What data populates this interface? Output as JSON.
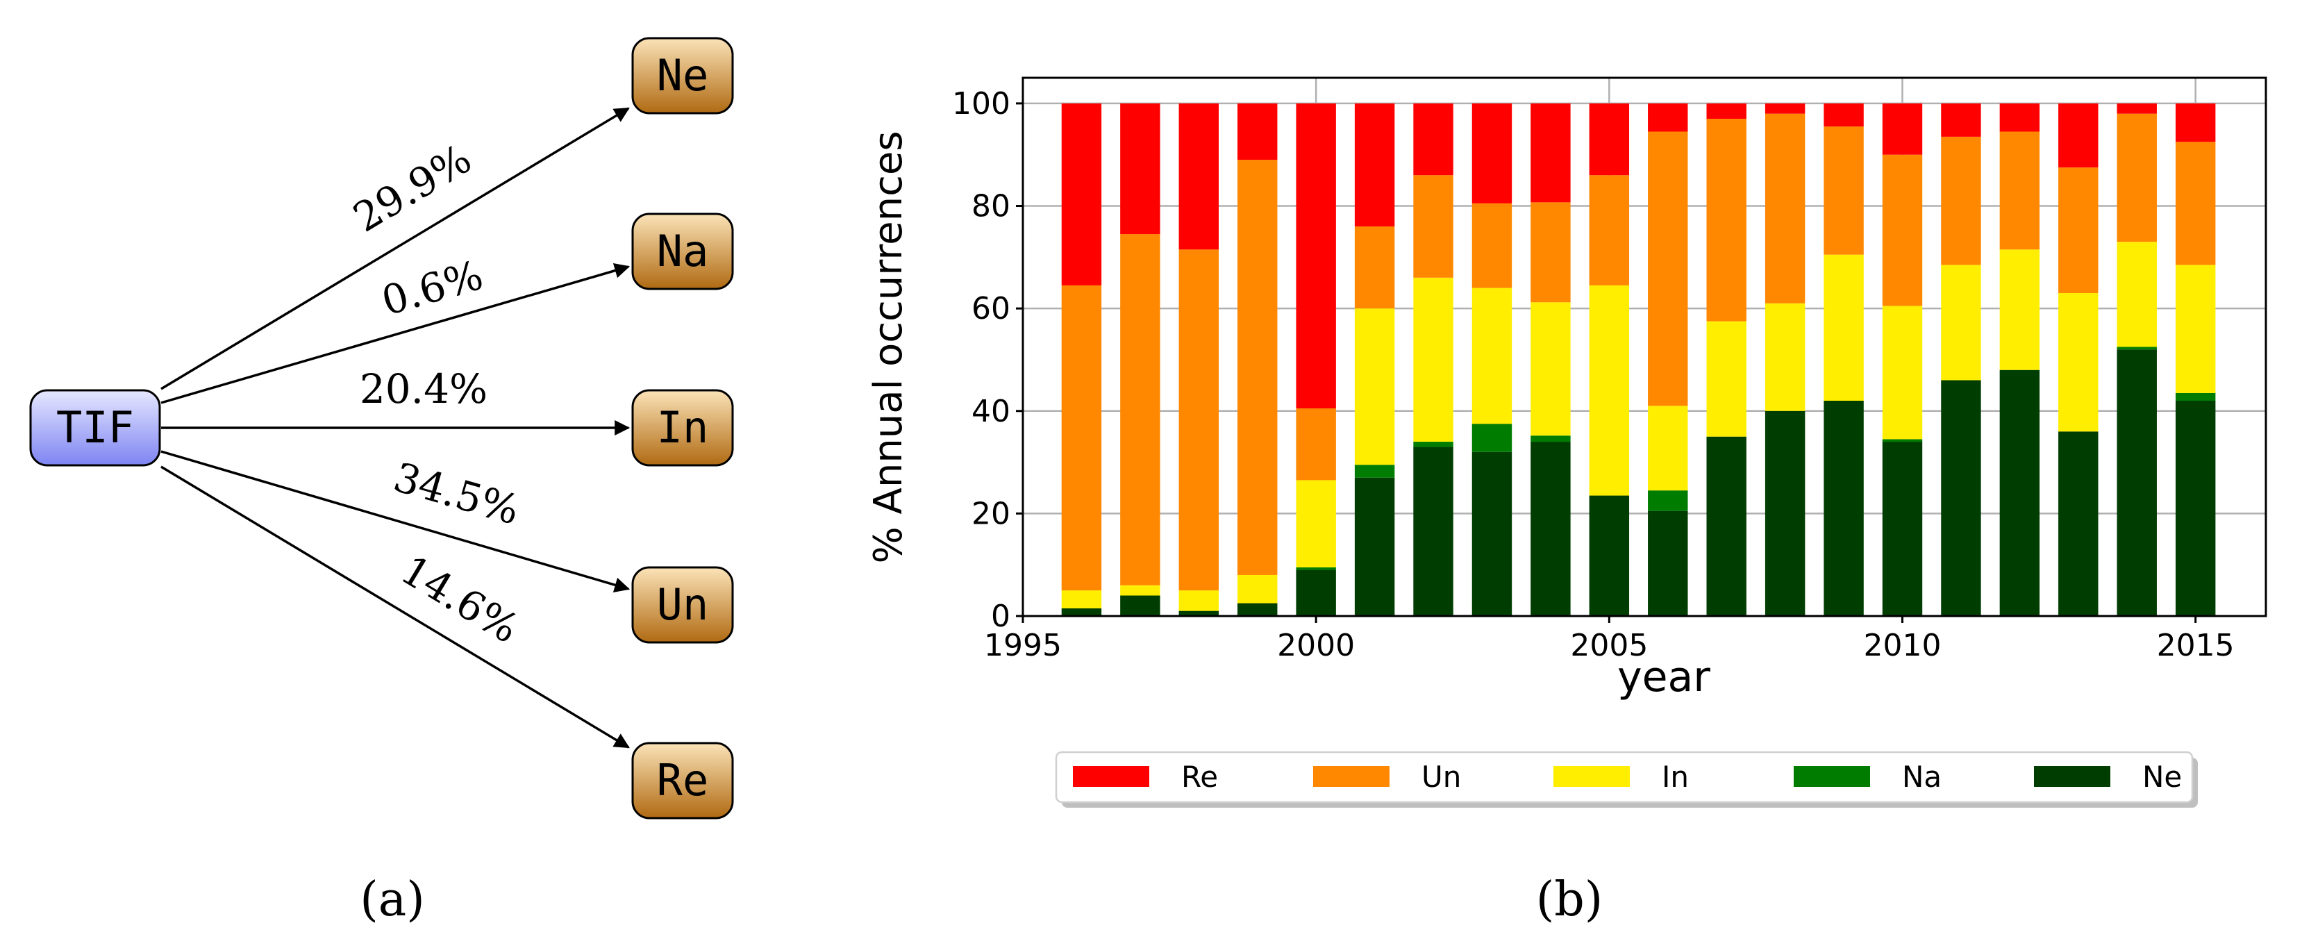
{
  "panel_a": {
    "caption": "(a)",
    "source": {
      "label": "TIF"
    },
    "targets": [
      {
        "label": "Ne",
        "percent": "29.9%"
      },
      {
        "label": "Na",
        "percent": "0.6%"
      },
      {
        "label": "In",
        "percent": "20.4%"
      },
      {
        "label": "Un",
        "percent": "34.5%"
      },
      {
        "label": "Re",
        "percent": "14.6%"
      }
    ]
  },
  "panel_b": {
    "caption": "(b)"
  },
  "chart_data": {
    "type": "bar",
    "stacked": true,
    "title": "",
    "xlabel": "year",
    "ylabel": "% Annual occurrences",
    "xlim": [
      1995,
      2016.2
    ],
    "ylim": [
      0,
      105
    ],
    "xticks": [
      1995,
      2000,
      2005,
      2010,
      2015
    ],
    "yticks": [
      0,
      20,
      40,
      60,
      80,
      100
    ],
    "grid": true,
    "categories": [
      1996,
      1997,
      1998,
      1999,
      2000,
      2001,
      2002,
      2003,
      2004,
      2005,
      2006,
      2007,
      2008,
      2009,
      2010,
      2011,
      2012,
      2013,
      2014,
      2015
    ],
    "series": [
      {
        "name": "Ne",
        "color": "#003d00",
        "values": [
          1.5,
          4,
          1,
          2.5,
          9,
          27,
          33,
          32,
          34,
          23.5,
          20.5,
          35,
          40,
          42,
          34,
          46,
          48,
          36,
          52,
          42
        ]
      },
      {
        "name": "Na",
        "color": "#007c00",
        "values": [
          0,
          0,
          0,
          0,
          0.5,
          2.5,
          1,
          5.5,
          1.2,
          0,
          4,
          0,
          0,
          0,
          0.5,
          0,
          0,
          0,
          0.5,
          1.5
        ]
      },
      {
        "name": "In",
        "color": "#ffee00",
        "values": [
          3.5,
          2,
          4,
          5.5,
          17,
          30.5,
          32,
          26.5,
          26,
          41,
          16.5,
          22.5,
          21,
          28.5,
          26,
          22.5,
          23.5,
          27,
          20.5,
          25
        ]
      },
      {
        "name": "Un",
        "color": "#ff8800",
        "values": [
          59.5,
          68.5,
          66.5,
          81,
          14,
          16,
          20,
          16.5,
          19.5,
          21.5,
          53.5,
          39.5,
          37,
          25,
          29.5,
          25,
          23,
          24.5,
          25,
          24
        ]
      },
      {
        "name": "Re",
        "color": "#ff0000",
        "values": [
          35.5,
          25.5,
          28.5,
          11,
          59.5,
          24,
          14,
          19.5,
          19.3,
          14,
          5.5,
          3,
          2,
          4.5,
          10,
          6.5,
          5.5,
          12.5,
          2,
          7.5
        ]
      }
    ],
    "legend": {
      "placement": "bottom-center",
      "order": [
        "Re",
        "Un",
        "In",
        "Na",
        "Ne"
      ]
    }
  }
}
